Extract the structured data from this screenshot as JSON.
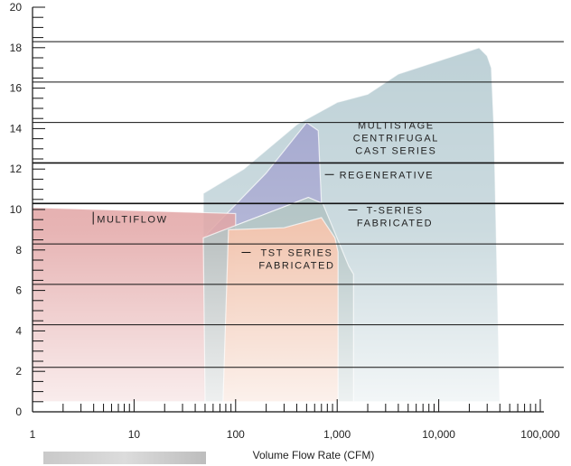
{
  "chart_data": {
    "type": "area",
    "title": "",
    "xlabel": "Volume Flow Rate (CFM)",
    "ylabel": "",
    "x_scale": "log",
    "xlim": [
      1,
      100000
    ],
    "ylim": [
      0,
      20
    ],
    "x_ticks": [
      1,
      10,
      100,
      1000,
      10000,
      100000
    ],
    "x_tick_labels": [
      "1",
      "10",
      "100",
      "1,000",
      "10,000",
      "100,000"
    ],
    "y_ticks": [
      0,
      2,
      4,
      6,
      8,
      10,
      12,
      14,
      16,
      18,
      20
    ],
    "y_tick_labels": [
      "0",
      "2",
      "4",
      "6",
      "8",
      "10",
      "12",
      "14",
      "16",
      "18",
      "20"
    ],
    "grid_y_lines": [
      2.2,
      4.3,
      6.3,
      8.3,
      10.3,
      12.3,
      14.3,
      16.3,
      18.3
    ],
    "series": [
      {
        "name": "MULTISTAGE CENTRIFUGAL CAST SERIES",
        "label_lines": [
          "MULTISTAGE",
          "CENTRIFUGAL",
          "CAST SERIES"
        ],
        "color": "#aac3cb",
        "opacity": 0.8,
        "polygon": [
          [
            48,
            0.5
          ],
          [
            48,
            10.8
          ],
          [
            120,
            12
          ],
          [
            400,
            14.2
          ],
          [
            1000,
            15.3
          ],
          [
            2000,
            15.7
          ],
          [
            4000,
            16.7
          ],
          [
            25000,
            18
          ],
          [
            30000,
            17.6
          ],
          [
            33000,
            17
          ],
          [
            35000,
            14
          ],
          [
            40000,
            0.5
          ]
        ]
      },
      {
        "name": "REGENERATIVE",
        "label_lines": [
          "REGENERATIVE"
        ],
        "color": "#8f8ec4",
        "opacity": 0.75,
        "polygon": [
          [
            48,
            8.6
          ],
          [
            200,
            11.8
          ],
          [
            500,
            14.3
          ],
          [
            650,
            13.9
          ],
          [
            700,
            10.3
          ],
          [
            520,
            10.6
          ],
          [
            48,
            8.6
          ]
        ]
      },
      {
        "name": "MULTIFLOW",
        "label_lines": [
          "MULTIFLOW"
        ],
        "color": "#d98a8a",
        "opacity": 0.85,
        "polygon": [
          [
            1,
            10.1
          ],
          [
            100,
            9.8
          ],
          [
            100,
            0.5
          ],
          [
            1,
            0.5
          ]
        ]
      },
      {
        "name": "T-SERIES FABRICATED",
        "label_lines": [
          "T-SERIES",
          "FABRICATED"
        ],
        "color": "#9ab0b0",
        "opacity": 0.85,
        "polygon": [
          [
            50,
            0.5
          ],
          [
            48,
            8.6
          ],
          [
            520,
            10.6
          ],
          [
            720,
            10.3
          ],
          [
            1300,
            7.2
          ],
          [
            1450,
            6.8
          ],
          [
            1450,
            0.5
          ]
        ]
      },
      {
        "name": "TST SERIES FABRICATED",
        "label_lines": [
          "TST SERIES",
          "FABRICATED"
        ],
        "color": "#f5b394",
        "opacity": 0.9,
        "polygon": [
          [
            75,
            0.5
          ],
          [
            85,
            9
          ],
          [
            300,
            9.1
          ],
          [
            700,
            9.6
          ],
          [
            950,
            8.6
          ],
          [
            1020,
            7.9
          ],
          [
            1020,
            0.5
          ]
        ]
      }
    ],
    "legend": "none",
    "grid": true
  }
}
